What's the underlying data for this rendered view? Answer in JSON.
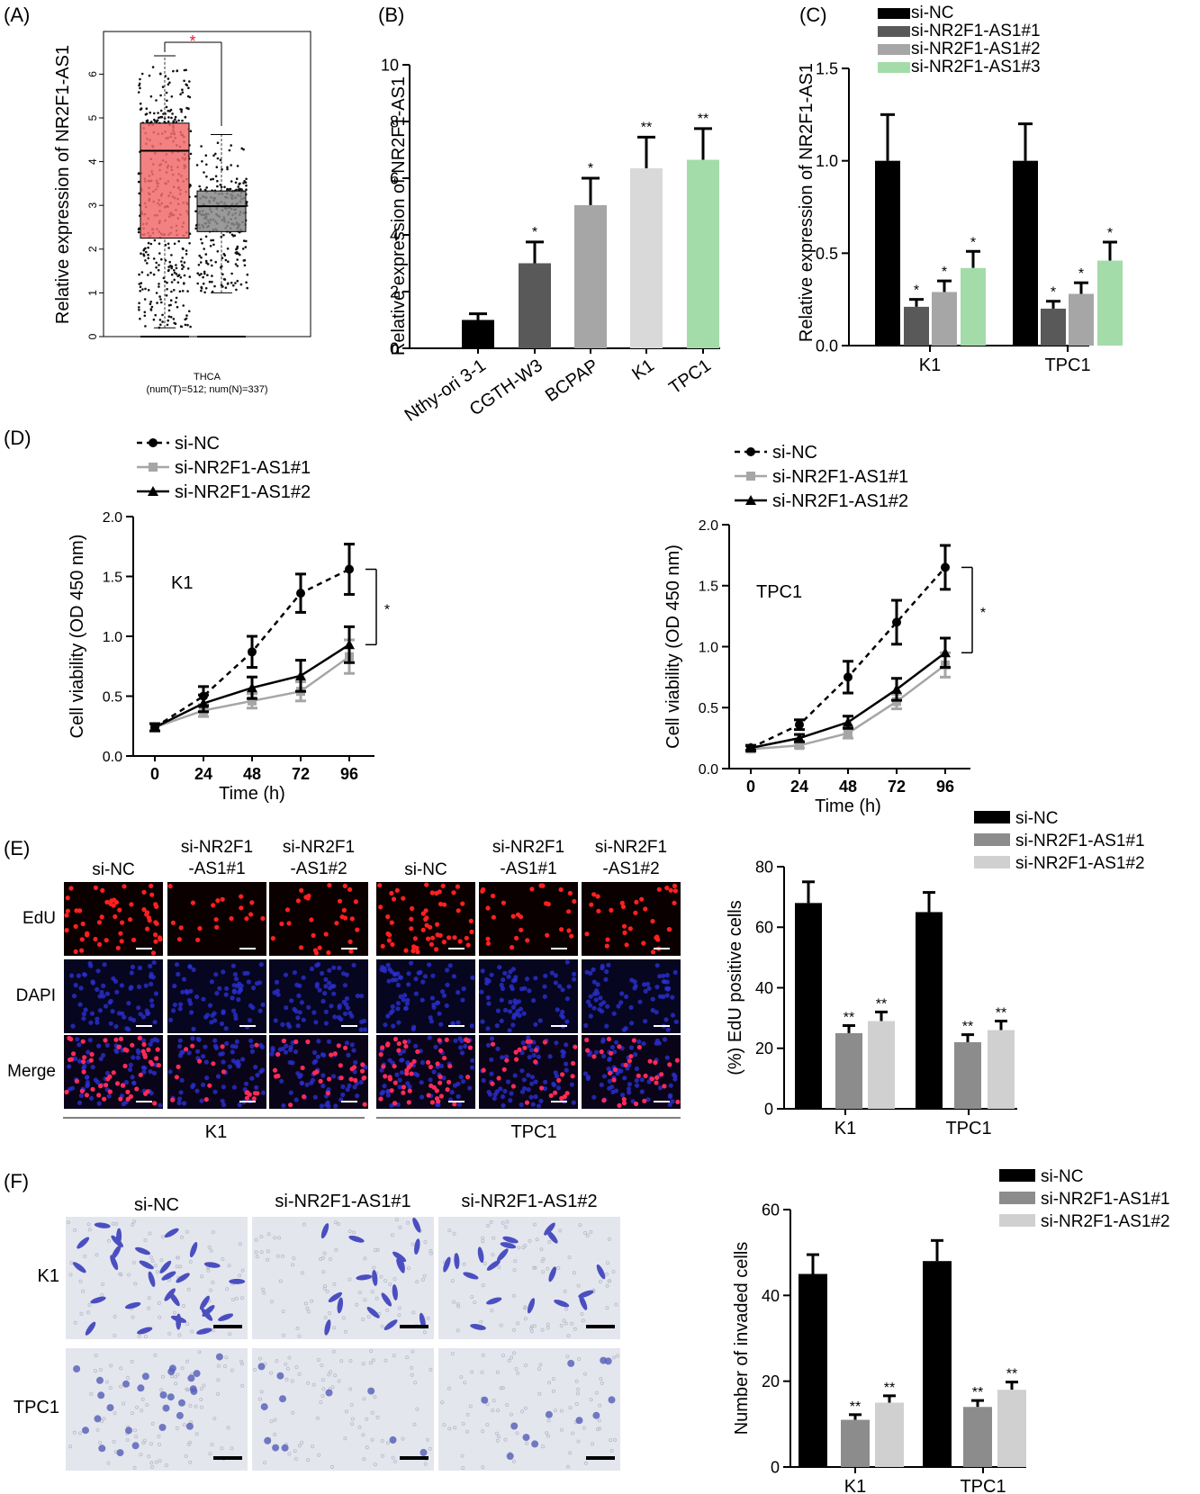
{
  "colors": {
    "black": "#000000",
    "dark_gray": "#595959",
    "mid_gray": "#8c8c8c",
    "light_gray": "#a6a6a6",
    "pale_gray": "#d0d0d0",
    "lighter_gray": "#d9d9d9",
    "green": "#a3dca9",
    "tumor_red": "#f26b6b",
    "normal_gray": "#888888",
    "star_red": "#e8212a",
    "edu_bg": "#0b0000",
    "dapi_bg": "#060620",
    "merge_bg": "#0a0418",
    "stain_bg": "#e4e6ee"
  },
  "panels": {
    "A": "(A)",
    "B": "(B)",
    "C": "(C)",
    "D": "(D)",
    "E": "(E)",
    "F": "(F)"
  },
  "chart_data": [
    {
      "id": "A",
      "type": "box",
      "ylabel": "Relative expression of NR2F1-AS1",
      "ylim": [
        0,
        7
      ],
      "yticks": [
        "0",
        "1",
        "2",
        "3",
        "4",
        "5",
        "6"
      ],
      "xlabel": "THCA",
      "note": "(num(T)=512; num(N)=337)",
      "significance": "*",
      "boxes": [
        {
          "q1": 2.25,
          "median": 4.25,
          "q3": 4.88,
          "whisker_low": 0.2,
          "whisker_high": 6.42,
          "color": "#f26b6b"
        },
        {
          "q1": 2.4,
          "median": 2.98,
          "q3": 3.33,
          "whisker_low": 1.0,
          "whisker_high": 4.62,
          "color": "#888888"
        }
      ]
    },
    {
      "id": "B",
      "type": "bar",
      "ylabel": "Relative expression of NR2F1-AS1",
      "ylim": [
        0,
        10
      ],
      "yticks": [
        "0",
        "2",
        "4",
        "6",
        "8",
        "10"
      ],
      "categories": [
        "Nthy-ori 3-1",
        "CGTH-W3",
        "BCPAP",
        "K1",
        "TPC1"
      ],
      "values": [
        1.0,
        3.0,
        5.05,
        6.35,
        6.65
      ],
      "errors": [
        0.22,
        0.75,
        0.95,
        1.1,
        1.1
      ],
      "significance": [
        "",
        "*",
        "*",
        "**",
        "**"
      ],
      "colors": [
        "#000000",
        "#595959",
        "#a6a6a6",
        "#d9d9d9",
        "#a3dca9"
      ]
    },
    {
      "id": "C",
      "type": "bar",
      "ylabel": "Relative expression of NR2F1-AS1",
      "ylim": [
        0,
        1.5
      ],
      "yticks": [
        "0.0",
        "0.5",
        "1.0",
        "1.5"
      ],
      "categories": [
        "K1",
        "TPC1"
      ],
      "legend": [
        "si-NC",
        "si-NR2F1-AS1#1",
        "si-NR2F1-AS1#2",
        "si-NR2F1-AS1#3"
      ],
      "series": [
        {
          "name": "si-NC",
          "values": [
            1.0,
            1.0
          ],
          "errors": [
            0.25,
            0.2
          ],
          "significance": [
            "",
            ""
          ]
        },
        {
          "name": "si-NR2F1-AS1#1",
          "values": [
            0.21,
            0.2
          ],
          "errors": [
            0.04,
            0.04
          ],
          "significance": [
            "*",
            "*"
          ]
        },
        {
          "name": "si-NR2F1-AS1#2",
          "values": [
            0.29,
            0.28
          ],
          "errors": [
            0.06,
            0.06
          ],
          "significance": [
            "*",
            "*"
          ]
        },
        {
          "name": "si-NR2F1-AS1#3",
          "values": [
            0.42,
            0.46
          ],
          "errors": [
            0.09,
            0.1
          ],
          "significance": [
            "*",
            "*"
          ]
        }
      ],
      "colors": [
        "#000000",
        "#595959",
        "#a6a6a6",
        "#a3dca9"
      ]
    },
    {
      "id": "D1",
      "type": "line",
      "annotation": "K1",
      "ylabel": "Cell viability (OD 450 nm)",
      "xlabel": "Time (h)",
      "x": [
        0,
        24,
        48,
        72,
        96
      ],
      "ylim": [
        0,
        2.0
      ],
      "yticks": [
        "0.0",
        "0.5",
        "1.0",
        "1.5",
        "2.0"
      ],
      "significance": "*",
      "series": [
        {
          "name": "si-NC",
          "values": [
            0.24,
            0.5,
            0.87,
            1.36,
            1.56
          ],
          "errors": [
            0.03,
            0.08,
            0.13,
            0.16,
            0.21
          ]
        },
        {
          "name": "si-NR2F1-AS1#1",
          "values": [
            0.24,
            0.38,
            0.46,
            0.54,
            0.83
          ],
          "errors": [
            0.03,
            0.05,
            0.06,
            0.08,
            0.14
          ]
        },
        {
          "name": "si-NR2F1-AS1#2",
          "values": [
            0.24,
            0.44,
            0.57,
            0.67,
            0.93
          ],
          "errors": [
            0.03,
            0.07,
            0.09,
            0.13,
            0.15
          ]
        }
      ]
    },
    {
      "id": "D2",
      "type": "line",
      "annotation": "TPC1",
      "ylabel": "Cell viability (OD 450 nm)",
      "xlabel": "Time (h)",
      "x": [
        0,
        24,
        48,
        72,
        96
      ],
      "ylim": [
        0,
        2.0
      ],
      "yticks": [
        "0.0",
        "0.5",
        "1.0",
        "1.5",
        "2.0"
      ],
      "significance": "*",
      "series": [
        {
          "name": "si-NC",
          "values": [
            0.17,
            0.36,
            0.75,
            1.2,
            1.65
          ],
          "errors": [
            0.02,
            0.04,
            0.13,
            0.18,
            0.18
          ]
        },
        {
          "name": "si-NR2F1-AS1#1",
          "values": [
            0.16,
            0.19,
            0.29,
            0.55,
            0.85
          ],
          "errors": [
            0.02,
            0.02,
            0.04,
            0.06,
            0.1
          ]
        },
        {
          "name": "si-NR2F1-AS1#2",
          "values": [
            0.17,
            0.25,
            0.38,
            0.65,
            0.95
          ],
          "errors": [
            0.02,
            0.03,
            0.05,
            0.09,
            0.12
          ]
        }
      ]
    },
    {
      "id": "E",
      "type": "bar",
      "ylabel": "(%) EdU positive cells",
      "ylim": [
        0,
        80
      ],
      "yticks": [
        "0",
        "20",
        "40",
        "60",
        "80"
      ],
      "categories": [
        "K1",
        "TPC1"
      ],
      "legend": [
        "si-NC",
        "si-NR2F1-AS1#1",
        "si-NR2F1-AS1#2"
      ],
      "series": [
        {
          "name": "si-NC",
          "values": [
            68,
            65
          ],
          "errors": [
            7,
            6.5
          ],
          "significance": [
            "",
            ""
          ]
        },
        {
          "name": "si-NR2F1-AS1#1",
          "values": [
            25,
            22
          ],
          "errors": [
            2.5,
            2.5
          ],
          "significance": [
            "**",
            "**"
          ]
        },
        {
          "name": "si-NR2F1-AS1#2",
          "values": [
            29,
            26
          ],
          "errors": [
            3,
            3
          ],
          "significance": [
            "**",
            "**"
          ]
        }
      ],
      "colors": [
        "#000000",
        "#8c8c8c",
        "#d0d0d0"
      ]
    },
    {
      "id": "F",
      "type": "bar",
      "ylabel": "Number of invaded cells",
      "ylim": [
        0,
        60
      ],
      "yticks": [
        "0",
        "20",
        "40",
        "60"
      ],
      "categories": [
        "K1",
        "TPC1"
      ],
      "legend": [
        "si-NC",
        "si-NR2F1-AS1#1",
        "si-NR2F1-AS1#2"
      ],
      "series": [
        {
          "name": "si-NC",
          "values": [
            45,
            48
          ],
          "errors": [
            4.5,
            4.8
          ],
          "significance": [
            "",
            ""
          ]
        },
        {
          "name": "si-NR2F1-AS1#1",
          "values": [
            11,
            14
          ],
          "errors": [
            1.2,
            1.5
          ],
          "significance": [
            "**",
            "**"
          ]
        },
        {
          "name": "si-NR2F1-AS1#2",
          "values": [
            15,
            18
          ],
          "errors": [
            1.6,
            1.8
          ],
          "significance": [
            "**",
            "**"
          ]
        }
      ],
      "colors": [
        "#000000",
        "#8c8c8c",
        "#d0d0d0"
      ]
    }
  ],
  "micro_e": {
    "col_labels": [
      "si-NC",
      "si-NR2F1\n-AS1#1",
      "si-NR2F1\n-AS1#2",
      "si-NC",
      "si-NR2F1\n-AS1#1",
      "si-NR2F1\n-AS1#2"
    ],
    "row_labels": [
      "EdU",
      "DAPI",
      "Merge"
    ],
    "group_labels": [
      "K1",
      "TPC1"
    ]
  },
  "micro_f": {
    "col_labels": [
      "si-NC",
      "si-NR2F1-AS1#1",
      "si-NR2F1-AS1#2"
    ],
    "row_labels": [
      "K1",
      "TPC1"
    ]
  }
}
